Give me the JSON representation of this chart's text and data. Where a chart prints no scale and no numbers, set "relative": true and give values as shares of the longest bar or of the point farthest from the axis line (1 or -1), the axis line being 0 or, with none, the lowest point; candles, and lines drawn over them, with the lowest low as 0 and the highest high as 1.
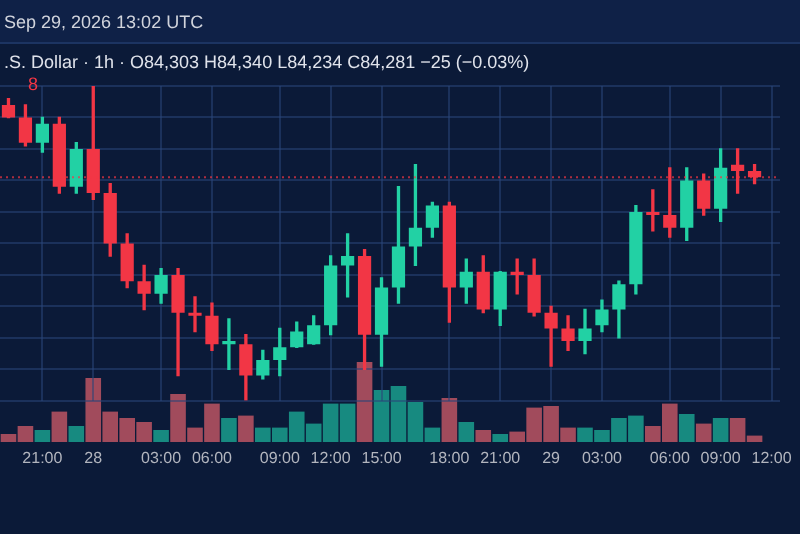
{
  "chart_data": [
    {
      "type": "candlestick",
      "relative": true,
      "annotations": [
        "Sep 29, 2026 13:02 UTC",
        ".S. Dollar · 1h · O84,303 H84,340 L84,234 C84,281 −25 (−0.03%)",
        "8"
      ],
      "categories": [
        null,
        null,
        "21:00",
        null,
        null,
        "28",
        null,
        null,
        null,
        "03:00",
        null,
        null,
        "06:00",
        null,
        null,
        null,
        "09:00",
        null,
        null,
        "12:00",
        null,
        null,
        "15:00",
        null,
        null,
        null,
        "18:00",
        null,
        null,
        "21:00",
        null,
        null,
        "29",
        null,
        null,
        "03:00",
        null,
        null,
        null,
        "06:00",
        null,
        null,
        "09:00",
        null,
        null,
        "12:00"
      ],
      "ohlc": [
        [
          0.94,
          0.96,
          0.9,
          0.9
        ],
        [
          0.9,
          0.94,
          0.81,
          0.82
        ],
        [
          0.82,
          0.9,
          0.79,
          0.88
        ],
        [
          0.88,
          0.9,
          0.66,
          0.68
        ],
        [
          0.68,
          0.82,
          0.66,
          0.8
        ],
        [
          0.8,
          1.0,
          0.64,
          0.66
        ],
        [
          0.66,
          0.69,
          0.46,
          0.5
        ],
        [
          0.5,
          0.53,
          0.36,
          0.38
        ],
        [
          0.38,
          0.43,
          0.29,
          0.34
        ],
        [
          0.34,
          0.42,
          0.31,
          0.4
        ],
        [
          0.4,
          0.42,
          0.08,
          0.28
        ],
        [
          0.28,
          0.33,
          0.22,
          0.27
        ],
        [
          0.27,
          0.31,
          0.16,
          0.18
        ],
        [
          0.18,
          0.26,
          0.1,
          0.19
        ],
        [
          0.18,
          0.21,
          0.0,
          0.08
        ],
        [
          0.08,
          0.16,
          0.07,
          0.13
        ],
        [
          0.13,
          0.23,
          0.08,
          0.17
        ],
        [
          0.17,
          0.25,
          0.17,
          0.22
        ],
        [
          0.18,
          0.27,
          0.18,
          0.24
        ],
        [
          0.24,
          0.46,
          0.21,
          0.43
        ],
        [
          0.43,
          0.53,
          0.33,
          0.46
        ],
        [
          0.46,
          0.48,
          0.1,
          0.21
        ],
        [
          0.21,
          0.39,
          0.11,
          0.36
        ],
        [
          0.36,
          0.68,
          0.31,
          0.49
        ],
        [
          0.49,
          0.75,
          0.43,
          0.55
        ],
        [
          0.55,
          0.63,
          0.52,
          0.62
        ],
        [
          0.62,
          0.63,
          0.25,
          0.36
        ],
        [
          0.36,
          0.45,
          0.31,
          0.41
        ],
        [
          0.41,
          0.46,
          0.28,
          0.29
        ],
        [
          0.29,
          0.41,
          0.24,
          0.41
        ],
        [
          0.41,
          0.45,
          0.34,
          0.4
        ],
        [
          0.4,
          0.45,
          0.27,
          0.28
        ],
        [
          0.28,
          0.3,
          0.11,
          0.23
        ],
        [
          0.23,
          0.27,
          0.16,
          0.19
        ],
        [
          0.19,
          0.29,
          0.15,
          0.23
        ],
        [
          0.24,
          0.32,
          0.22,
          0.29
        ],
        [
          0.29,
          0.38,
          0.2,
          0.37
        ],
        [
          0.37,
          0.62,
          0.34,
          0.6
        ],
        [
          0.6,
          0.67,
          0.54,
          0.59
        ],
        [
          0.59,
          0.74,
          0.52,
          0.55
        ],
        [
          0.55,
          0.74,
          0.51,
          0.7
        ],
        [
          0.7,
          0.72,
          0.59,
          0.61
        ],
        [
          0.61,
          0.8,
          0.57,
          0.74
        ],
        [
          0.75,
          0.8,
          0.66,
          0.73
        ],
        [
          0.73,
          0.75,
          0.69,
          0.71
        ],
        null
      ],
      "colors": [
        "#f23645",
        "#f23645",
        "#22d1a4",
        "#f23645",
        "#22d1a4",
        "#f23645",
        "#f23645",
        "#f23645",
        "#f23645",
        "#22d1a4",
        "#f23645",
        "#f23645",
        "#f23645",
        "#22d1a4",
        "#f23645",
        "#22d1a4",
        "#22d1a4",
        "#22d1a4",
        "#22d1a4",
        "#22d1a4",
        "#22d1a4",
        "#f23645",
        "#22d1a4",
        "#22d1a4",
        "#22d1a4",
        "#22d1a4",
        "#f23645",
        "#22d1a4",
        "#f23645",
        "#22d1a4",
        "#f23645",
        "#f23645",
        "#f23645",
        "#f23645",
        "#22d1a4",
        "#22d1a4",
        "#22d1a4",
        "#22d1a4",
        "#f23645",
        "#f23645",
        "#22d1a4",
        "#f23645",
        "#22d1a4",
        "#f23645",
        "#f23645",
        null
      ],
      "ref_lines": [
        {
          "axis": "y",
          "value": 0.71,
          "color": "#f23645",
          "line_style": "dotted"
        }
      ],
      "grid": true
    },
    {
      "type": "bar",
      "relative": true,
      "categories": [
        null,
        null,
        null,
        null,
        null,
        null,
        null,
        null,
        null,
        null,
        null,
        null,
        null,
        null,
        null,
        null,
        null,
        null,
        null,
        null,
        null,
        null,
        null,
        null,
        null,
        null,
        null,
        null,
        null,
        null,
        null,
        null,
        null,
        null,
        null,
        null,
        null,
        null,
        null,
        null,
        null,
        null,
        null,
        null,
        null
      ],
      "values": [
        0.1,
        0.2,
        0.15,
        0.38,
        0.2,
        0.8,
        0.38,
        0.3,
        0.25,
        0.15,
        0.6,
        0.18,
        0.48,
        0.3,
        0.33,
        0.18,
        0.18,
        0.38,
        0.23,
        0.48,
        0.48,
        1,
        0.65,
        0.7,
        0.5,
        0.18,
        0.55,
        0.25,
        0.15,
        0.1,
        0.13,
        0.43,
        0.45,
        0.18,
        0.18,
        0.15,
        0.3,
        0.33,
        0.2,
        0.48,
        0.35,
        0.23,
        0.3,
        0.3,
        0.08
      ],
      "colors": [
        "#a14b5c",
        "#a14b5c",
        "#178a80",
        "#a14b5c",
        "#178a80",
        "#a14b5c",
        "#a14b5c",
        "#a14b5c",
        "#a14b5c",
        "#178a80",
        "#a14b5c",
        "#a14b5c",
        "#a14b5c",
        "#178a80",
        "#a14b5c",
        "#178a80",
        "#178a80",
        "#178a80",
        "#178a80",
        "#178a80",
        "#178a80",
        "#a14b5c",
        "#178a80",
        "#178a80",
        "#178a80",
        "#178a80",
        "#a14b5c",
        "#178a80",
        "#a14b5c",
        "#178a80",
        "#a14b5c",
        "#a14b5c",
        "#a14b5c",
        "#a14b5c",
        "#178a80",
        "#178a80",
        "#178a80",
        "#178a80",
        "#a14b5c",
        "#a14b5c",
        "#178a80",
        "#a14b5c",
        "#178a80",
        "#a14b5c",
        "#a14b5c"
      ]
    }
  ]
}
